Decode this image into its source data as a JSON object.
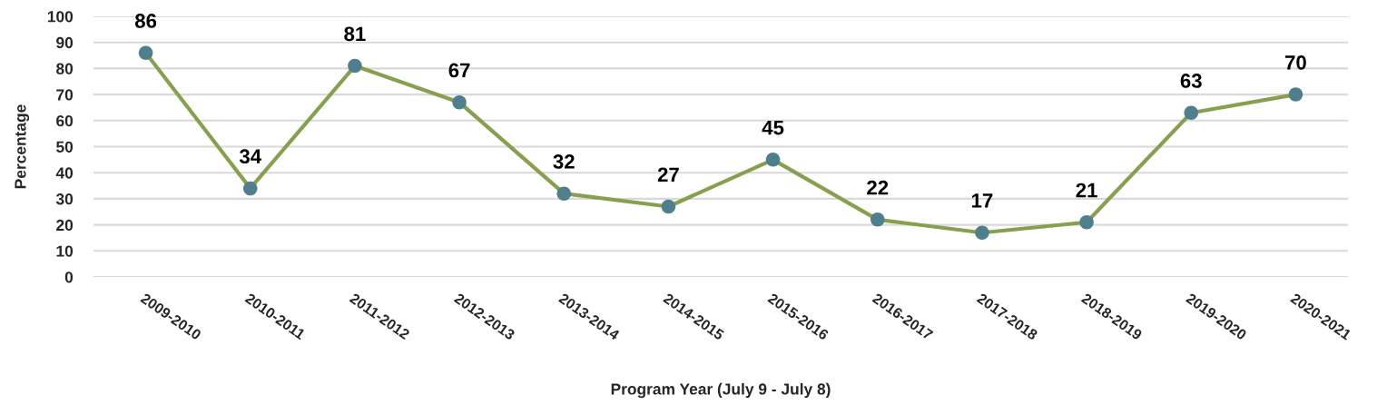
{
  "chart_data": {
    "type": "line",
    "xlabel": "Program Year (July 9 - July 8)",
    "ylabel": "Percentage",
    "categories": [
      "2009-2010",
      "2010-2011",
      "2011-2012",
      "2012-2013",
      "2013-2014",
      "2014-2015",
      "2015-2016",
      "2016-2017",
      "2017-2018",
      "2018-2019",
      "2019-2020",
      "2020-2021"
    ],
    "series": [
      {
        "color": "#87a04f",
        "colors": [
          "#4f7f8c",
          "#4f7f8c",
          "#4f7f8c",
          "#4f7f8c",
          "#4f7f8c",
          "#4f7f8c",
          "#4f7f8c",
          "#4f7f8c",
          "#4f7f8c",
          "#4f7f8c",
          "#4f7f8c",
          "#4f7f8c"
        ],
        "values": [
          86,
          34,
          81,
          67,
          32,
          27,
          45,
          22,
          17,
          21,
          63,
          70
        ]
      }
    ],
    "ylim": [
      0,
      100
    ],
    "yticks": [
      0,
      10,
      20,
      30,
      40,
      50,
      60,
      70,
      80,
      90,
      100
    ],
    "grid": "y",
    "marker": "circle",
    "line_style": "solid",
    "data_labels": true
  }
}
